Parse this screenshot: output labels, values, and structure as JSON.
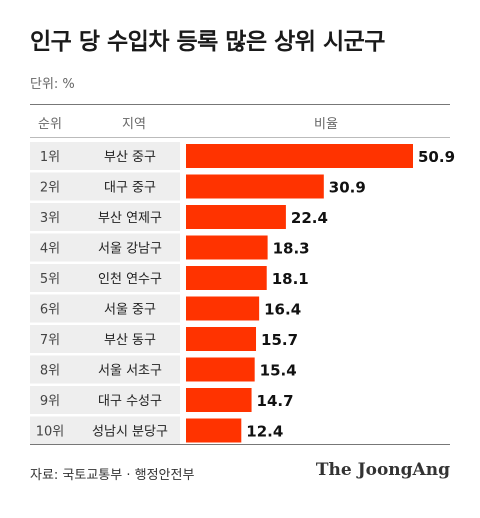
{
  "title": "인구 당 수입차 등록 많은 상위 시군구",
  "unit_label": "단위: %",
  "headers": {
    "rank": "순위",
    "region": "지역",
    "ratio": "비율"
  },
  "source": "자료: 국토교통부 · 행정안전부",
  "logo": "The JoongAng",
  "colors": {
    "bar": "#ff3300",
    "row_band": "#eeeeee"
  },
  "chart_data": {
    "type": "bar",
    "orientation": "horizontal",
    "title": "인구 당 수입차 등록 많은 상위 시군구",
    "unit": "%",
    "ranks": [
      "1위",
      "2위",
      "3위",
      "4위",
      "5위",
      "6위",
      "7위",
      "8위",
      "9위",
      "10위"
    ],
    "categories": [
      "부산 중구",
      "대구 중구",
      "부산 연제구",
      "서울 강남구",
      "인천 연수구",
      "서울 중구",
      "부산 동구",
      "서울 서초구",
      "대구 수성구",
      "성남시 분당구"
    ],
    "values": [
      50.9,
      30.9,
      22.4,
      18.3,
      18.1,
      16.4,
      15.7,
      15.4,
      14.7,
      12.4
    ],
    "value_labels": [
      "50.9",
      "30.9",
      "22.4",
      "18.3",
      "18.1",
      "16.4",
      "15.7",
      "15.4",
      "14.7",
      "12.4"
    ],
    "xlim": [
      0,
      50.9
    ],
    "grid": false
  }
}
